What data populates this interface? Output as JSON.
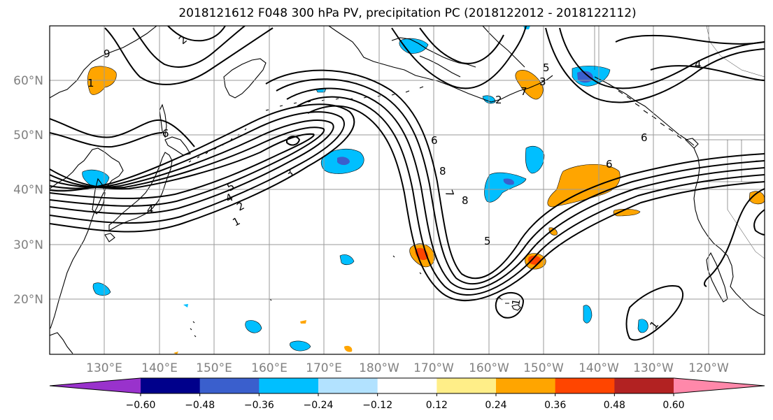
{
  "title": "2018121612 F048 300 hPa PV, precipitation PC (2018122012 - 2018122112)",
  "lat_labels": [
    "60°N",
    "50°N",
    "40°N",
    "30°N",
    "20°N"
  ],
  "lon_labels": [
    "130°E",
    "140°E",
    "150°E",
    "160°E",
    "170°E",
    "180°W",
    "170°W",
    "160°W",
    "150°W",
    "140°W",
    "130°W",
    "120°W"
  ],
  "contour_labels": [
    "1",
    "2",
    "3",
    "4",
    "5",
    "6",
    "7",
    "8",
    "6",
    "4",
    "2",
    "1",
    "3",
    "5",
    "9",
    "6",
    "4",
    "1",
    "1",
    "2",
    "5",
    "6",
    "7",
    "8"
  ],
  "colorbar": {
    "ticks": [
      "−0.60",
      "−0.48",
      "−0.36",
      "−0.24",
      "−0.12",
      "0.12",
      "0.24",
      "0.36",
      "0.48",
      "0.60"
    ],
    "colors": [
      "#9932cc",
      "#00008b",
      "#3a5fcd",
      "#00bfff",
      "#b2e2ff",
      "#ffffff",
      "#ffee88",
      "#ffa500",
      "#ff4500",
      "#b22222",
      "#ff88aa"
    ]
  }
}
